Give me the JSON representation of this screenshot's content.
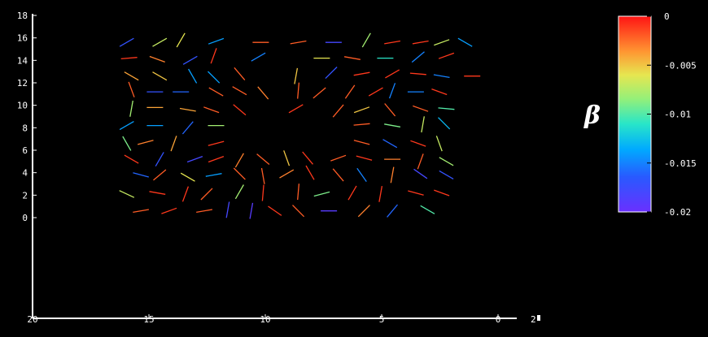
{
  "chart_data": {
    "type": "scatter",
    "title": "",
    "xlabel": "",
    "ylabel": "",
    "xlim": [
      20,
      -1
    ],
    "ylim": [
      -9,
      18
    ],
    "x_ticks": [
      {
        "value": 20,
        "label": "20"
      },
      {
        "value": 15,
        "label": "15"
      },
      {
        "value": 10,
        "label": "10"
      },
      {
        "value": 5,
        "label": "5"
      },
      {
        "value": 0,
        "label": "0"
      }
    ],
    "y_ticks": [
      {
        "value": 0,
        "label": "0"
      },
      {
        "value": 2,
        "label": "2"
      },
      {
        "value": 4,
        "label": "4"
      },
      {
        "value": 6,
        "label": "6"
      },
      {
        "value": 8,
        "label": "8"
      },
      {
        "value": 10,
        "label": "10"
      },
      {
        "value": 12,
        "label": "12"
      },
      {
        "value": 14,
        "label": "14"
      },
      {
        "value": 16,
        "label": "16"
      },
      {
        "value": 18,
        "label": "18"
      }
    ],
    "z_axis_label": "2",
    "colorbar": {
      "label": "β",
      "range": [
        -0.02,
        0
      ],
      "ticks": [
        {
          "value": 0,
          "label": "0"
        },
        {
          "value": -0.005,
          "label": "-0.005"
        },
        {
          "value": -0.01,
          "label": "-0.01"
        },
        {
          "value": -0.015,
          "label": "-0.015"
        },
        {
          "value": -0.02,
          "label": "-0.02"
        }
      ]
    },
    "segments_note": "Director-field segments on a 16×12 grid (x: 1–16, y: 0–15), each with orientation angle (deg) and beta value; central 4×4 block (x 7–10, y 6–9) mostly absent.",
    "segments": [
      [
        15.2,
        0.6,
        10,
        -0.002
      ],
      [
        14,
        0.6,
        20,
        -0.001
      ],
      [
        12.5,
        0.6,
        10,
        -0.002
      ],
      [
        11.5,
        0.7,
        80,
        -0.018
      ],
      [
        10.5,
        0.6,
        80,
        -0.019
      ],
      [
        9.5,
        0.6,
        -35,
        -0.001
      ],
      [
        8.5,
        0.6,
        -45,
        -0.002
      ],
      [
        7.2,
        0.6,
        0,
        -0.019
      ],
      [
        5.7,
        0.6,
        45,
        -0.003
      ],
      [
        4.5,
        0.6,
        50,
        -0.016
      ],
      [
        3,
        0.7,
        -30,
        -0.01
      ],
      [
        15.8,
        2.1,
        -25,
        -0.007
      ],
      [
        14.5,
        2.2,
        -10,
        -0.001
      ],
      [
        13.3,
        2.1,
        70,
        -0.001
      ],
      [
        12.4,
        2.1,
        45,
        -0.002
      ],
      [
        11,
        2.3,
        60,
        -0.008
      ],
      [
        10,
        2.2,
        85,
        -0.001
      ],
      [
        8.5,
        2.3,
        85,
        -0.002
      ],
      [
        7.5,
        2.1,
        15,
        -0.009
      ],
      [
        6.2,
        2.2,
        60,
        -0.001
      ],
      [
        5,
        2.1,
        80,
        -0.001
      ],
      [
        3.5,
        2.2,
        -15,
        -0.001
      ],
      [
        2.4,
        2.2,
        -20,
        -0.001
      ],
      [
        15.2,
        3.8,
        -15,
        -0.016
      ],
      [
        14.4,
        3.8,
        40,
        -0.002
      ],
      [
        13.2,
        3.6,
        -30,
        -0.006
      ],
      [
        12.1,
        3.8,
        10,
        -0.014
      ],
      [
        11,
        3.9,
        -45,
        -0.002
      ],
      [
        10,
        3.7,
        -80,
        -0.002
      ],
      [
        9,
        3.9,
        30,
        -0.003
      ],
      [
        8,
        4,
        -60,
        -0.001
      ],
      [
        6.8,
        3.8,
        -50,
        -0.002
      ],
      [
        5.8,
        3.8,
        -55,
        -0.015
      ],
      [
        4.5,
        3.8,
        80,
        -0.003
      ],
      [
        3.3,
        3.9,
        -35,
        -0.018
      ],
      [
        2.2,
        3.8,
        -30,
        -0.017
      ],
      [
        15.6,
        5.2,
        -30,
        -0.001
      ],
      [
        14.4,
        5.2,
        60,
        -0.017
      ],
      [
        12.9,
        5.2,
        20,
        -0.018
      ],
      [
        12,
        5.2,
        20,
        -0.001
      ],
      [
        11,
        5.1,
        60,
        -0.003
      ],
      [
        10,
        5.2,
        -40,
        -0.002
      ],
      [
        9,
        5.3,
        -70,
        -0.005
      ],
      [
        8.1,
        5.3,
        -50,
        -0.001
      ],
      [
        6.8,
        5.3,
        20,
        -0.002
      ],
      [
        5.7,
        5.3,
        -15,
        -0.001
      ],
      [
        4.5,
        5.2,
        0,
        -0.003
      ],
      [
        3.3,
        5,
        70,
        -0.002
      ],
      [
        2.2,
        5,
        -30,
        -0.008
      ],
      [
        15.8,
        6.6,
        -60,
        -0.009
      ],
      [
        15,
        6.7,
        15,
        -0.003
      ],
      [
        13.8,
        6.6,
        70,
        -0.004
      ],
      [
        12,
        6.6,
        15,
        -0.001
      ],
      [
        5.8,
        6.7,
        -15,
        -0.002
      ],
      [
        4.6,
        6.6,
        -30,
        -0.016
      ],
      [
        3.4,
        6.6,
        -20,
        -0.001
      ],
      [
        2.5,
        6.6,
        -70,
        -0.007
      ],
      [
        15.8,
        8.2,
        30,
        -0.014
      ],
      [
        14.6,
        8.2,
        0,
        -0.014
      ],
      [
        13.2,
        8,
        50,
        -0.016
      ],
      [
        12,
        8.2,
        0,
        -0.008
      ],
      [
        5.8,
        8.3,
        5,
        -0.002
      ],
      [
        4.5,
        8.2,
        -10,
        -0.009
      ],
      [
        3.2,
        8.3,
        80,
        -0.007
      ],
      [
        2.3,
        8.4,
        -45,
        -0.013
      ],
      [
        15.6,
        9.7,
        80,
        -0.008
      ],
      [
        14.6,
        9.8,
        0,
        -0.004
      ],
      [
        13.2,
        9.6,
        -10,
        -0.004
      ],
      [
        12.2,
        9.6,
        -20,
        -0.002
      ],
      [
        11,
        9.6,
        -40,
        -0.001
      ],
      [
        8.6,
        9.7,
        30,
        -0.001
      ],
      [
        6.8,
        9.5,
        50,
        -0.002
      ],
      [
        5.8,
        9.6,
        20,
        -0.005
      ],
      [
        4.6,
        9.6,
        -50,
        -0.002
      ],
      [
        3.3,
        9.7,
        -20,
        -0.002
      ],
      [
        2.2,
        9.7,
        -5,
        -0.01
      ],
      [
        15.6,
        11.4,
        -70,
        -0.002
      ],
      [
        14.6,
        11.2,
        0,
        -0.017
      ],
      [
        13.5,
        11.2,
        0,
        -0.016
      ],
      [
        12,
        11.2,
        -30,
        -0.002
      ],
      [
        11,
        11.3,
        -30,
        -0.002
      ],
      [
        10,
        11.1,
        -50,
        -0.003
      ],
      [
        8.5,
        11.3,
        85,
        -0.002
      ],
      [
        7.6,
        11.1,
        40,
        -0.002
      ],
      [
        6.3,
        11.2,
        55,
        -0.002
      ],
      [
        5.2,
        11.2,
        30,
        -0.001
      ],
      [
        4.5,
        11.3,
        70,
        -0.015
      ],
      [
        3.5,
        11.2,
        0,
        -0.015
      ],
      [
        2.5,
        11.2,
        -20,
        -0.001
      ],
      [
        15.6,
        12.6,
        -30,
        -0.004
      ],
      [
        14.4,
        12.6,
        -30,
        -0.005
      ],
      [
        13,
        12.6,
        -60,
        -0.014
      ],
      [
        12.1,
        12.5,
        -45,
        -0.014
      ],
      [
        11,
        12.8,
        -50,
        -0.002
      ],
      [
        8.6,
        12.6,
        80,
        -0.005
      ],
      [
        7.1,
        12.9,
        45,
        -0.017
      ],
      [
        5.8,
        12.8,
        10,
        -0.001
      ],
      [
        4.5,
        12.8,
        30,
        -0.001
      ],
      [
        3.4,
        12.8,
        -5,
        -0.001
      ],
      [
        2.4,
        12.6,
        -10,
        -0.015
      ],
      [
        1.1,
        12.6,
        0,
        -0.001
      ],
      [
        15.7,
        14.2,
        5,
        -0.001
      ],
      [
        14.5,
        14.1,
        -20,
        -0.003
      ],
      [
        13.1,
        14,
        30,
        -0.017
      ],
      [
        12.1,
        14.4,
        70,
        -0.001
      ],
      [
        10.2,
        14.3,
        30,
        -0.015
      ],
      [
        7.5,
        14.2,
        0,
        -0.006
      ],
      [
        6.2,
        14.2,
        -10,
        -0.002
      ],
      [
        4.8,
        14.2,
        0,
        -0.011
      ],
      [
        3.4,
        14.3,
        40,
        -0.015
      ],
      [
        2.2,
        14.4,
        20,
        -0.001
      ],
      [
        15.8,
        15.6,
        30,
        -0.017
      ],
      [
        14.4,
        15.6,
        30,
        -0.007
      ],
      [
        13.5,
        15.8,
        60,
        -0.006
      ],
      [
        12,
        15.7,
        20,
        -0.014
      ],
      [
        10.1,
        15.6,
        0,
        -0.002
      ],
      [
        8.5,
        15.6,
        10,
        -0.002
      ],
      [
        7,
        15.6,
        0,
        -0.018
      ],
      [
        5.6,
        15.8,
        60,
        -0.008
      ],
      [
        4.5,
        15.6,
        10,
        -0.001
      ],
      [
        3.3,
        15.6,
        10,
        -0.001
      ],
      [
        2.4,
        15.6,
        20,
        -0.007
      ],
      [
        1.4,
        15.6,
        -30,
        -0.014
      ]
    ]
  }
}
